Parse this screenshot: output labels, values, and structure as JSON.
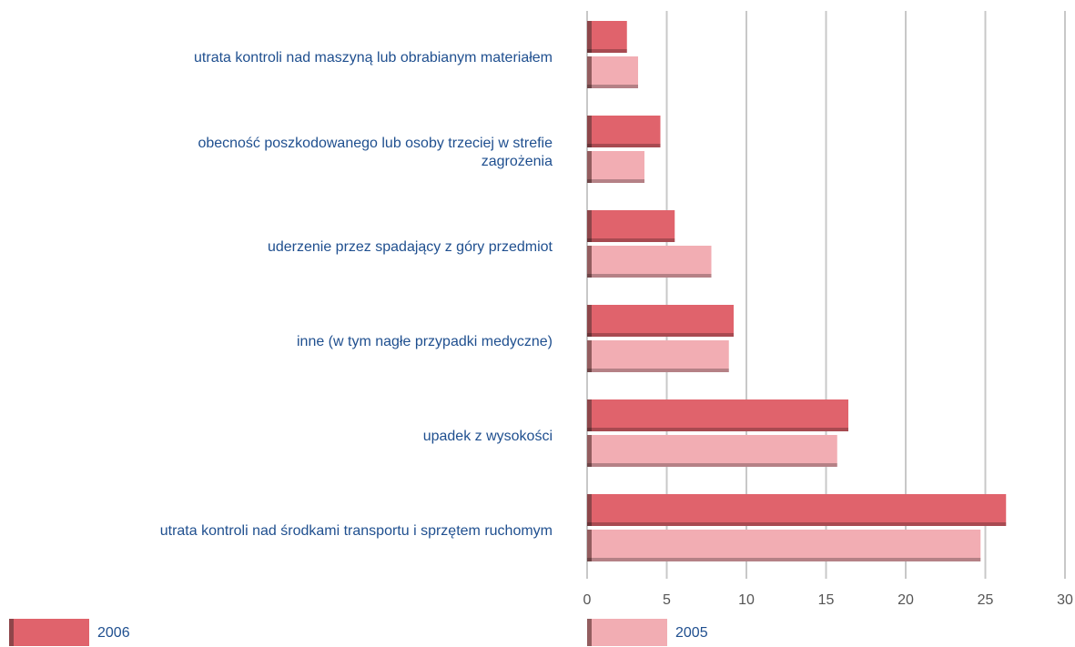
{
  "chart_data": {
    "type": "hbar",
    "categories": [
      "utrata kontroli nad maszyną lub obrabianym materiałem",
      "obecność poszkodowanego lub osoby trzeciej w strefie\nzagrożenia",
      "uderzenie przez spadający z góry przedmiot",
      "inne (w tym nagłe przypadki medyczne)",
      "upadek z wysokości",
      "utrata kontroli nad środkami transportu i sprzętem ruchomym"
    ],
    "series": [
      {
        "name": "2006",
        "color": "#e0636c",
        "values": [
          2.5,
          4.6,
          5.5,
          9.2,
          16.4,
          26.3
        ]
      },
      {
        "name": "2005",
        "color": "#f2adb3",
        "values": [
          3.2,
          3.6,
          7.8,
          8.9,
          15.7,
          24.7
        ]
      }
    ],
    "xlim": [
      0,
      30
    ],
    "xticks": [
      0,
      5,
      10,
      15,
      20,
      25,
      30
    ],
    "grid": true
  }
}
